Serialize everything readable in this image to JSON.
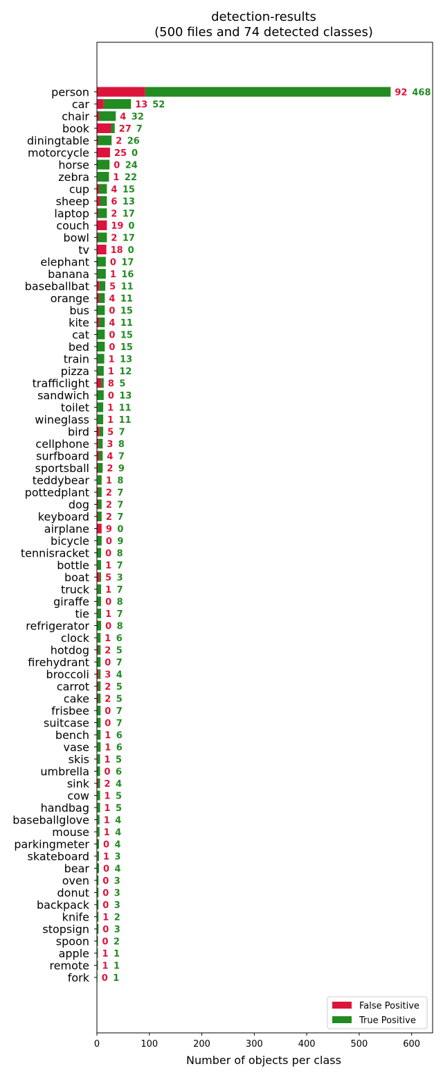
{
  "chart_data": {
    "type": "bar",
    "orientation": "horizontal",
    "stacked": true,
    "title": "detection-results",
    "subtitle": "(500 files and 74 detected classes)",
    "xlabel": "Number of objects per class",
    "ylabel": "",
    "xlim": [
      0,
      640
    ],
    "xticks": [
      0,
      100,
      200,
      300,
      400,
      500,
      600
    ],
    "grid": false,
    "legend_position": "bottom-right",
    "categories": [
      "person",
      "car",
      "chair",
      "book",
      "diningtable",
      "motorcycle",
      "horse",
      "zebra",
      "cup",
      "sheep",
      "laptop",
      "couch",
      "bowl",
      "tv",
      "elephant",
      "banana",
      "baseballbat",
      "orange",
      "bus",
      "kite",
      "cat",
      "bed",
      "train",
      "pizza",
      "trafficlight",
      "sandwich",
      "toilet",
      "wineglass",
      "bird",
      "cellphone",
      "surfboard",
      "sportsball",
      "teddybear",
      "pottedplant",
      "dog",
      "keyboard",
      "airplane",
      "bicycle",
      "tennisracket",
      "bottle",
      "boat",
      "truck",
      "giraffe",
      "tie",
      "refrigerator",
      "clock",
      "hotdog",
      "firehydrant",
      "broccoli",
      "carrot",
      "cake",
      "frisbee",
      "suitcase",
      "bench",
      "vase",
      "skis",
      "umbrella",
      "sink",
      "cow",
      "handbag",
      "baseballglove",
      "mouse",
      "parkingmeter",
      "skateboard",
      "bear",
      "oven",
      "donut",
      "backpack",
      "knife",
      "stopsign",
      "spoon",
      "apple",
      "remote",
      "fork"
    ],
    "series": [
      {
        "name": "False Positive",
        "color": "#dc143c",
        "values": [
          92,
          13,
          4,
          27,
          2,
          25,
          0,
          1,
          4,
          6,
          2,
          19,
          2,
          18,
          0,
          1,
          5,
          4,
          0,
          4,
          0,
          0,
          1,
          1,
          8,
          0,
          1,
          1,
          5,
          3,
          4,
          2,
          1,
          2,
          2,
          2,
          9,
          0,
          0,
          1,
          5,
          1,
          0,
          1,
          0,
          1,
          2,
          0,
          3,
          2,
          2,
          0,
          0,
          1,
          1,
          1,
          0,
          2,
          1,
          1,
          1,
          1,
          0,
          1,
          0,
          0,
          0,
          0,
          1,
          0,
          0,
          1,
          1,
          0
        ]
      },
      {
        "name": "True Positive",
        "color": "#228b22",
        "values": [
          468,
          52,
          32,
          7,
          26,
          0,
          24,
          22,
          15,
          13,
          17,
          0,
          17,
          0,
          17,
          16,
          11,
          11,
          15,
          11,
          15,
          15,
          13,
          12,
          5,
          13,
          11,
          11,
          7,
          8,
          7,
          9,
          8,
          7,
          7,
          7,
          0,
          9,
          8,
          7,
          3,
          7,
          8,
          7,
          8,
          6,
          5,
          7,
          4,
          5,
          5,
          7,
          7,
          6,
          6,
          5,
          6,
          4,
          5,
          5,
          4,
          4,
          4,
          3,
          4,
          3,
          3,
          3,
          2,
          3,
          2,
          1,
          1,
          1
        ]
      }
    ]
  }
}
